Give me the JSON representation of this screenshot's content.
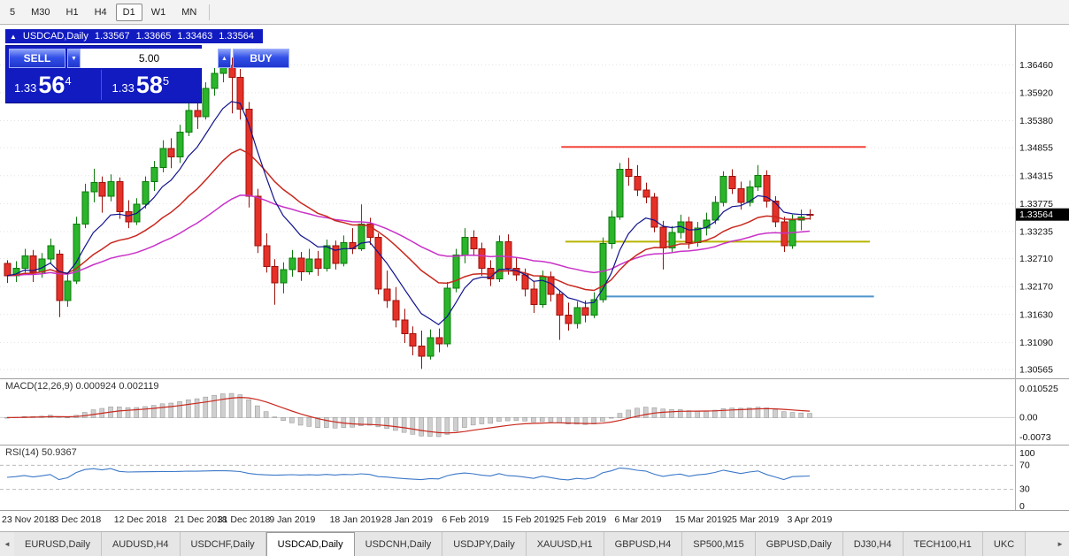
{
  "toolbar": {
    "timeframes": [
      "5",
      "M30",
      "H1",
      "H4",
      "D1",
      "W1",
      "MN"
    ],
    "active": "D1"
  },
  "chart": {
    "title": {
      "collapse_icon": "▲",
      "symbol": "USDCAD,Daily",
      "open": "1.33567",
      "high": "1.33665",
      "low": "1.33463",
      "close": "1.33564"
    },
    "trade_panel": {
      "sell_label": "SELL",
      "buy_label": "BUY",
      "volume": "5.00",
      "volume_down_icon": "▼",
      "volume_up_icon": "▲",
      "sell_price": {
        "base": "1.33",
        "pips": "56",
        "pipette": "4"
      },
      "buy_price": {
        "base": "1.33",
        "pips": "58",
        "pipette": "5"
      }
    },
    "price_axis": {
      "labels": [
        "1.36460",
        "1.35920",
        "1.35380",
        "1.34855",
        "1.34315",
        "1.33775",
        "1.33235",
        "1.32710",
        "1.32170",
        "1.31630",
        "1.31090",
        "1.30565"
      ],
      "current": "1.33564"
    },
    "indicators": {
      "macd": {
        "label": "MACD(12,26,9) 0.000924 0.002119",
        "axis_labels": [
          "0.010525",
          "0.00",
          "-0.0073"
        ]
      },
      "rsi": {
        "label": "RSI(14) 50.9367",
        "axis_labels": [
          "100",
          "70",
          "30",
          "0"
        ]
      }
    }
  },
  "chart_data": {
    "type": "candlestick",
    "symbol": "USDCAD",
    "timeframe": "Daily",
    "current_price": 1.33564,
    "price_range": [
      1.3043,
      1.372
    ],
    "x_ticks": [
      {
        "label": "23 Nov 2018",
        "i": 0
      },
      {
        "label": "3 Dec 2018",
        "i": 6
      },
      {
        "label": "12 Dec 2018",
        "i": 13
      },
      {
        "label": "21 Dec 2018",
        "i": 20
      },
      {
        "label": "31 Dec 2018",
        "i": 25
      },
      {
        "label": "9 Jan 2019",
        "i": 31
      },
      {
        "label": "18 Jan 2019",
        "i": 38
      },
      {
        "label": "28 Jan 2019",
        "i": 44
      },
      {
        "label": "6 Feb 2019",
        "i": 51
      },
      {
        "label": "15 Feb 2019",
        "i": 58
      },
      {
        "label": "25 Feb 2019",
        "i": 64
      },
      {
        "label": "6 Mar 2019",
        "i": 71
      },
      {
        "label": "15 Mar 2019",
        "i": 78
      },
      {
        "label": "25 Mar 2019",
        "i": 84
      },
      {
        "label": "3 Apr 2019",
        "i": 91
      }
    ],
    "candles": [
      [
        1.3262,
        1.3268,
        1.3224,
        1.3238
      ],
      [
        1.3238,
        1.3266,
        1.3226,
        1.3252
      ],
      [
        1.3252,
        1.329,
        1.3244,
        1.3276
      ],
      [
        1.3276,
        1.3288,
        1.3226,
        1.3245
      ],
      [
        1.3245,
        1.3282,
        1.3234,
        1.327
      ],
      [
        1.327,
        1.331,
        1.3262,
        1.3296
      ],
      [
        1.328,
        1.3288,
        1.3158,
        1.319
      ],
      [
        1.319,
        1.3244,
        1.3178,
        1.3228
      ],
      [
        1.3228,
        1.3352,
        1.3222,
        1.3338
      ],
      [
        1.3338,
        1.3416,
        1.333,
        1.34
      ],
      [
        1.34,
        1.3445,
        1.338,
        1.3418
      ],
      [
        1.3418,
        1.343,
        1.336,
        1.3392
      ],
      [
        1.3392,
        1.3434,
        1.3382,
        1.342
      ],
      [
        1.342,
        1.3428,
        1.3348,
        1.3362
      ],
      [
        1.3362,
        1.3384,
        1.333,
        1.3342
      ],
      [
        1.3342,
        1.3388,
        1.3336,
        1.3376
      ],
      [
        1.3376,
        1.343,
        1.3368,
        1.342
      ],
      [
        1.342,
        1.346,
        1.3402,
        1.3447
      ],
      [
        1.3447,
        1.35,
        1.3438,
        1.3484
      ],
      [
        1.3484,
        1.3504,
        1.3446,
        1.3468
      ],
      [
        1.3468,
        1.353,
        1.3456,
        1.3516
      ],
      [
        1.3516,
        1.3576,
        1.3508,
        1.3558
      ],
      [
        1.3558,
        1.36,
        1.3522,
        1.3546
      ],
      [
        1.3546,
        1.3612,
        1.354,
        1.36
      ],
      [
        1.36,
        1.3644,
        1.3586,
        1.3629
      ],
      [
        1.3629,
        1.3664,
        1.3612,
        1.3645
      ],
      [
        1.3645,
        1.366,
        1.3552,
        1.3622
      ],
      [
        1.3622,
        1.3638,
        1.354,
        1.356
      ],
      [
        1.356,
        1.3574,
        1.337,
        1.3392
      ],
      [
        1.3392,
        1.3406,
        1.3282,
        1.3296
      ],
      [
        1.3296,
        1.332,
        1.3244,
        1.3256
      ],
      [
        1.3256,
        1.327,
        1.3182,
        1.3224
      ],
      [
        1.3224,
        1.3264,
        1.3204,
        1.325
      ],
      [
        1.325,
        1.3288,
        1.3236,
        1.3272
      ],
      [
        1.3272,
        1.3284,
        1.3228,
        1.3246
      ],
      [
        1.3246,
        1.329,
        1.324,
        1.327
      ],
      [
        1.327,
        1.3286,
        1.3238,
        1.3252
      ],
      [
        1.3252,
        1.3308,
        1.3246,
        1.3296
      ],
      [
        1.3296,
        1.3306,
        1.325,
        1.3262
      ],
      [
        1.3262,
        1.3316,
        1.3256,
        1.3302
      ],
      [
        1.3302,
        1.333,
        1.328,
        1.329
      ],
      [
        1.329,
        1.3376,
        1.3286,
        1.3338
      ],
      [
        1.3338,
        1.335,
        1.3298,
        1.3312
      ],
      [
        1.3312,
        1.332,
        1.3202,
        1.3212
      ],
      [
        1.3212,
        1.3248,
        1.3176,
        1.319
      ],
      [
        1.319,
        1.3216,
        1.3138,
        1.3152
      ],
      [
        1.3152,
        1.3174,
        1.3108,
        1.3126
      ],
      [
        1.3126,
        1.314,
        1.3084,
        1.3102
      ],
      [
        1.3102,
        1.3132,
        1.3058,
        1.3082
      ],
      [
        1.3082,
        1.3134,
        1.3076,
        1.3118
      ],
      [
        1.3118,
        1.3136,
        1.309,
        1.3106
      ],
      [
        1.3106,
        1.3226,
        1.31,
        1.3214
      ],
      [
        1.3214,
        1.329,
        1.3206,
        1.3278
      ],
      [
        1.3278,
        1.333,
        1.3262,
        1.3312
      ],
      [
        1.3312,
        1.3326,
        1.3276,
        1.329
      ],
      [
        1.329,
        1.3302,
        1.3238,
        1.3252
      ],
      [
        1.3252,
        1.3268,
        1.3218,
        1.3232
      ],
      [
        1.3232,
        1.3316,
        1.3226,
        1.3304
      ],
      [
        1.3304,
        1.3318,
        1.324,
        1.3252
      ],
      [
        1.3252,
        1.3272,
        1.3228,
        1.324
      ],
      [
        1.324,
        1.3252,
        1.3198,
        1.3212
      ],
      [
        1.3212,
        1.3228,
        1.3166,
        1.3182
      ],
      [
        1.3182,
        1.3248,
        1.3176,
        1.3236
      ],
      [
        1.3236,
        1.3246,
        1.3188,
        1.3202
      ],
      [
        1.3202,
        1.321,
        1.3114,
        1.3162
      ],
      [
        1.3162,
        1.3186,
        1.3132,
        1.3146
      ],
      [
        1.3146,
        1.3188,
        1.3136,
        1.3176
      ],
      [
        1.3176,
        1.319,
        1.3148,
        1.3162
      ],
      [
        1.3162,
        1.3206,
        1.3156,
        1.3192
      ],
      [
        1.3192,
        1.3312,
        1.3186,
        1.33
      ],
      [
        1.33,
        1.3364,
        1.329,
        1.3352
      ],
      [
        1.3352,
        1.3456,
        1.3346,
        1.3444
      ],
      [
        1.3444,
        1.3466,
        1.3412,
        1.343
      ],
      [
        1.343,
        1.3452,
        1.3392,
        1.3404
      ],
      [
        1.3404,
        1.3418,
        1.3378,
        1.339
      ],
      [
        1.339,
        1.3398,
        1.3322,
        1.3332
      ],
      [
        1.3332,
        1.3344,
        1.325,
        1.3292
      ],
      [
        1.3292,
        1.3334,
        1.3284,
        1.3322
      ],
      [
        1.3322,
        1.3356,
        1.331,
        1.3342
      ],
      [
        1.3342,
        1.3352,
        1.329,
        1.3302
      ],
      [
        1.3302,
        1.3342,
        1.3294,
        1.333
      ],
      [
        1.333,
        1.336,
        1.3316,
        1.3346
      ],
      [
        1.3346,
        1.3392,
        1.3338,
        1.338
      ],
      [
        1.338,
        1.344,
        1.3372,
        1.343
      ],
      [
        1.343,
        1.3444,
        1.3396,
        1.3406
      ],
      [
        1.3406,
        1.342,
        1.3366,
        1.338
      ],
      [
        1.338,
        1.3422,
        1.3372,
        1.341
      ],
      [
        1.341,
        1.3452,
        1.3402,
        1.3432
      ],
      [
        1.3432,
        1.3442,
        1.337,
        1.3382
      ],
      [
        1.3382,
        1.3392,
        1.3332,
        1.3342
      ],
      [
        1.3342,
        1.3352,
        1.3284,
        1.3296
      ],
      [
        1.3296,
        1.3356,
        1.329,
        1.3346
      ],
      [
        1.3346,
        1.3366,
        1.3326,
        1.3352
      ],
      [
        1.33567,
        1.33665,
        1.33463,
        1.33564
      ]
    ],
    "moving_averages": [
      {
        "name": "fast",
        "period": 8,
        "color": "#10138c"
      },
      {
        "name": "mid",
        "period": 21,
        "color": "#c8281e"
      },
      {
        "name": "slow",
        "period": 45,
        "color": "#c832c8"
      }
    ],
    "h_lines": [
      {
        "name": "resistance-line",
        "price": 1.3487,
        "color": "#f4453a",
        "width": 2,
        "x1": 0.553,
        "x2": 0.853
      },
      {
        "name": "support-line-yellow",
        "price": 1.3304,
        "color": "#b6b400",
        "width": 2,
        "x1": 0.557,
        "x2": 0.857
      },
      {
        "name": "support-line-blue",
        "price": 1.3198,
        "color": "#4f94cd",
        "width": 2,
        "x1": 0.592,
        "x2": 0.861
      }
    ],
    "indicators": {
      "macd": {
        "fast": 12,
        "slow": 26,
        "signal": 9,
        "range": [
          -0.009,
          0.0135
        ]
      },
      "rsi": {
        "period": 14,
        "levels": [
          70,
          30
        ],
        "range": [
          0,
          100
        ]
      }
    },
    "colors": {
      "up": "#2ab52a",
      "up_stroke": "#0c7a0c",
      "down": "#e53128",
      "down_stroke": "#9b100b",
      "macd_hist": "#cfcfcf",
      "macd_hist_stroke": "#8f8f8f",
      "macd_signal": "#c8281e",
      "rsi": "#3c78c8",
      "grid": "#e2e2e2",
      "marker_bg": "#000000"
    }
  },
  "tabs": {
    "items": [
      "EURUSD,Daily",
      "AUDUSD,H4",
      "USDCHF,Daily",
      "USDCAD,Daily",
      "USDCNH,Daily",
      "USDJPY,Daily",
      "XAUUSD,H1",
      "GBPUSD,H4",
      "SP500,M15",
      "GBPUSD,Daily",
      "DJ30,H4",
      "TECH100,H1",
      "UKC"
    ],
    "active_index": 3,
    "scroll_left_icon": "◄",
    "scroll_right_icon": "►"
  }
}
